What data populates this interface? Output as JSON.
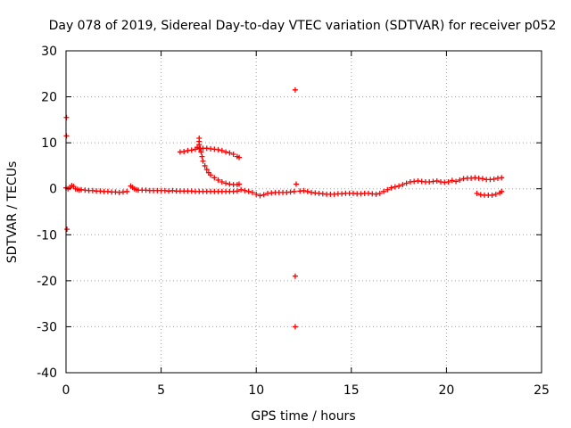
{
  "chart_data": {
    "type": "scatter",
    "title": "Day 078 of 2019, Sidereal Day-to-day VTEC variation (SDTVAR) for receiver p052",
    "xlabel": "GPS time / hours",
    "ylabel": "SDTVAR / TECUs",
    "xlim": [
      0,
      25
    ],
    "ylim": [
      -40,
      30
    ],
    "xticks": [
      0,
      5,
      10,
      15,
      20,
      25
    ],
    "yticks": [
      -40,
      -30,
      -20,
      -10,
      0,
      10,
      20,
      30
    ],
    "xtick_labels": [
      "0",
      "5",
      "10",
      "15",
      "20",
      "25"
    ],
    "ytick_labels": [
      "-40",
      "-30",
      "-20",
      "-10",
      "0",
      "10",
      "20",
      "30"
    ],
    "grid": true,
    "marker": "+",
    "color": "#ff0000",
    "series": [
      {
        "name": "main trace (early)",
        "points": [
          [
            0.0,
            0.2
          ],
          [
            0.1,
            0.0
          ],
          [
            0.2,
            0.3
          ],
          [
            0.3,
            0.7
          ],
          [
            0.4,
            0.5
          ],
          [
            0.5,
            0.0
          ],
          [
            0.6,
            -0.1
          ],
          [
            0.7,
            -0.3
          ],
          [
            0.8,
            -0.2
          ],
          [
            1.0,
            -0.3
          ],
          [
            1.2,
            -0.4
          ],
          [
            1.4,
            -0.4
          ],
          [
            1.6,
            -0.5
          ],
          [
            1.8,
            -0.5
          ],
          [
            2.0,
            -0.6
          ],
          [
            2.2,
            -0.6
          ],
          [
            2.4,
            -0.7
          ],
          [
            2.6,
            -0.7
          ],
          [
            2.8,
            -0.8
          ],
          [
            3.0,
            -0.7
          ],
          [
            3.2,
            -0.6
          ],
          [
            3.4,
            0.6
          ],
          [
            3.5,
            0.3
          ],
          [
            3.6,
            0.0
          ],
          [
            3.7,
            -0.2
          ],
          [
            3.8,
            -0.3
          ],
          [
            4.0,
            -0.3
          ],
          [
            4.2,
            -0.3
          ],
          [
            4.4,
            -0.4
          ],
          [
            4.6,
            -0.4
          ],
          [
            4.8,
            -0.4
          ],
          [
            5.0,
            -0.4
          ],
          [
            5.2,
            -0.4
          ],
          [
            5.4,
            -0.5
          ],
          [
            5.6,
            -0.4
          ],
          [
            5.8,
            -0.5
          ],
          [
            6.0,
            -0.5
          ],
          [
            6.2,
            -0.5
          ],
          [
            6.4,
            -0.5
          ],
          [
            6.6,
            -0.5
          ],
          [
            6.8,
            -0.6
          ],
          [
            7.0,
            -0.6
          ],
          [
            7.2,
            -0.6
          ],
          [
            7.4,
            -0.6
          ],
          [
            7.6,
            -0.6
          ],
          [
            7.8,
            -0.6
          ],
          [
            8.0,
            -0.6
          ],
          [
            8.2,
            -0.6
          ],
          [
            8.4,
            -0.6
          ],
          [
            8.6,
            -0.6
          ],
          [
            8.8,
            -0.6
          ],
          [
            9.0,
            -0.5
          ]
        ]
      },
      {
        "name": "elevated arc",
        "points": [
          [
            6.0,
            8.0
          ],
          [
            6.2,
            8.1
          ],
          [
            6.4,
            8.3
          ],
          [
            6.6,
            8.4
          ],
          [
            6.8,
            8.6
          ],
          [
            6.9,
            9.0
          ],
          [
            7.0,
            8.7
          ],
          [
            7.2,
            8.8
          ],
          [
            7.4,
            8.8
          ],
          [
            7.6,
            8.7
          ],
          [
            7.8,
            8.6
          ],
          [
            8.0,
            8.5
          ],
          [
            8.2,
            8.3
          ],
          [
            8.4,
            8.0
          ],
          [
            8.6,
            7.8
          ],
          [
            8.8,
            7.5
          ],
          [
            9.0,
            7.0
          ],
          [
            9.1,
            6.8
          ]
        ]
      },
      {
        "name": "descending branch",
        "points": [
          [
            7.0,
            11.0
          ],
          [
            7.0,
            10.3
          ],
          [
            7.0,
            9.6
          ],
          [
            7.05,
            8.8
          ],
          [
            7.1,
            8.0
          ],
          [
            7.15,
            7.0
          ],
          [
            7.2,
            6.0
          ],
          [
            7.3,
            5.0
          ],
          [
            7.4,
            4.2
          ],
          [
            7.5,
            3.5
          ],
          [
            7.6,
            3.0
          ],
          [
            7.8,
            2.4
          ],
          [
            8.0,
            1.9
          ],
          [
            8.2,
            1.5
          ],
          [
            8.4,
            1.2
          ],
          [
            8.6,
            1.0
          ],
          [
            8.8,
            0.9
          ],
          [
            9.0,
            0.9
          ],
          [
            9.1,
            1.0
          ]
        ]
      },
      {
        "name": "main trace (middle)",
        "points": [
          [
            9.2,
            -0.2
          ],
          [
            9.4,
            -0.4
          ],
          [
            9.6,
            -0.6
          ],
          [
            9.8,
            -0.8
          ],
          [
            10.0,
            -1.2
          ],
          [
            10.2,
            -1.5
          ],
          [
            10.4,
            -1.3
          ],
          [
            10.6,
            -1.0
          ],
          [
            10.8,
            -0.9
          ],
          [
            11.0,
            -0.8
          ],
          [
            11.2,
            -0.8
          ],
          [
            11.4,
            -0.8
          ],
          [
            11.6,
            -0.8
          ],
          [
            11.8,
            -0.7
          ],
          [
            12.0,
            -0.6
          ],
          [
            12.3,
            -0.5
          ],
          [
            12.5,
            -0.4
          ],
          [
            12.7,
            -0.6
          ],
          [
            12.9,
            -0.8
          ],
          [
            13.1,
            -0.9
          ],
          [
            13.3,
            -1.0
          ],
          [
            13.5,
            -1.1
          ],
          [
            13.7,
            -1.2
          ],
          [
            13.9,
            -1.2
          ],
          [
            14.1,
            -1.2
          ],
          [
            14.3,
            -1.1
          ],
          [
            14.5,
            -1.1
          ],
          [
            14.7,
            -1.0
          ],
          [
            14.9,
            -1.0
          ],
          [
            15.1,
            -1.0
          ],
          [
            15.3,
            -1.1
          ],
          [
            15.5,
            -1.1
          ],
          [
            15.7,
            -1.0
          ],
          [
            15.9,
            -1.0
          ],
          [
            16.1,
            -1.1
          ],
          [
            16.3,
            -1.2
          ],
          [
            16.5,
            -1.0
          ],
          [
            16.7,
            -0.6
          ],
          [
            16.9,
            -0.2
          ],
          [
            17.1,
            0.2
          ],
          [
            17.3,
            0.4
          ],
          [
            17.5,
            0.6
          ],
          [
            17.7,
            0.9
          ],
          [
            17.9,
            1.2
          ],
          [
            18.1,
            1.5
          ],
          [
            18.3,
            1.6
          ],
          [
            18.5,
            1.7
          ],
          [
            18.7,
            1.6
          ],
          [
            18.9,
            1.5
          ],
          [
            19.1,
            1.5
          ],
          [
            19.3,
            1.6
          ],
          [
            19.5,
            1.7
          ],
          [
            19.7,
            1.5
          ],
          [
            19.9,
            1.4
          ],
          [
            20.1,
            1.5
          ],
          [
            20.3,
            1.8
          ],
          [
            20.5,
            1.6
          ],
          [
            20.7,
            1.9
          ],
          [
            20.9,
            2.2
          ],
          [
            21.1,
            2.3
          ],
          [
            21.3,
            2.3
          ],
          [
            21.5,
            2.4
          ],
          [
            21.7,
            2.3
          ],
          [
            21.9,
            2.2
          ],
          [
            22.1,
            2.0
          ],
          [
            22.3,
            2.0
          ],
          [
            22.5,
            2.1
          ],
          [
            22.7,
            2.3
          ],
          [
            22.9,
            2.4
          ]
        ]
      },
      {
        "name": "late lower segment",
        "points": [
          [
            21.6,
            -1.0
          ],
          [
            21.8,
            -1.3
          ],
          [
            22.0,
            -1.4
          ],
          [
            22.2,
            -1.4
          ],
          [
            22.4,
            -1.4
          ],
          [
            22.6,
            -1.2
          ],
          [
            22.8,
            -0.9
          ],
          [
            22.9,
            -0.6
          ]
        ]
      },
      {
        "name": "outliers",
        "points": [
          [
            0.02,
            15.5
          ],
          [
            0.02,
            11.5
          ],
          [
            0.05,
            -8.8
          ],
          [
            12.05,
            21.5
          ],
          [
            12.1,
            1.0
          ],
          [
            12.05,
            -19.0
          ],
          [
            12.05,
            -30.0
          ]
        ]
      }
    ]
  }
}
